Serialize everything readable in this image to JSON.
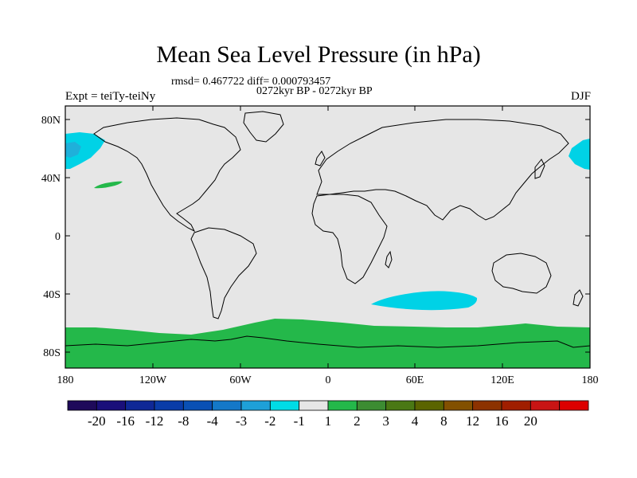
{
  "title": "Mean Sea Level Pressure (in hPa)",
  "stats": "rmsd= 0.467722  diff= 0.000793457",
  "period": "0272kyr BP - 0272kyr BP",
  "expt": "Expt = teiTy-teiNy",
  "season": "DJF",
  "map": {
    "lat_labels": [
      "80N",
      "40N",
      "0",
      "40S",
      "80S"
    ],
    "lon_labels": [
      "180",
      "120W",
      "60W",
      "0",
      "60E",
      "120E",
      "180"
    ],
    "colors": {
      "background": "#e6e6e6",
      "neg_light": "#00d2e6",
      "neg_mid": "#1fb0da",
      "pos_green": "#24b84a",
      "coast": "#000000"
    }
  },
  "colorbar": {
    "labels": [
      "-20",
      "-16",
      "-12",
      "-8",
      "-4",
      "-3",
      "-2",
      "-1",
      "1",
      "2",
      "3",
      "4",
      "8",
      "12",
      "16",
      "20"
    ],
    "colors": [
      "#1e0a5a",
      "#1a0f7a",
      "#0f2896",
      "#0a3ca8",
      "#0a50b4",
      "#1478c8",
      "#1ea0d8",
      "#00dce6",
      "#e6e6e6",
      "#24b84a",
      "#3c8c32",
      "#4a7814",
      "#5a6400",
      "#825000",
      "#8c3200",
      "#a01e00",
      "#c81414",
      "#dc0000"
    ]
  }
}
